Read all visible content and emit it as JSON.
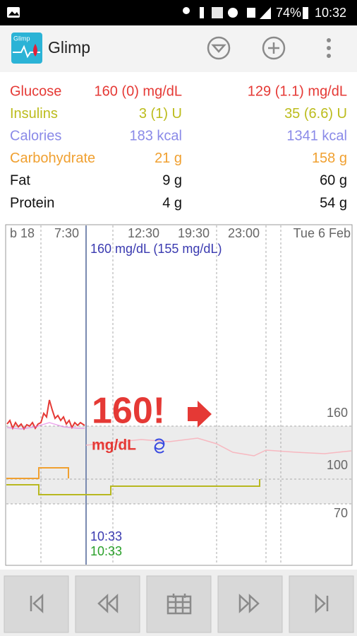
{
  "status_bar": {
    "battery": "74%",
    "time": "10:32"
  },
  "app_bar": {
    "logo_text": "Glimp",
    "title": "Glimp"
  },
  "summary": {
    "rows": [
      [
        "Glucose",
        "160 (0) mg/dL",
        "129 (1.1) mg/dL"
      ],
      [
        "Insulins",
        "3 (1) U",
        "35 (6.6) U"
      ],
      [
        "Calories",
        "183 kcal",
        "1341 kcal"
      ],
      [
        "Carbohydrate",
        "21 g",
        "158 g"
      ],
      [
        "Fat",
        "9 g",
        "60 g"
      ],
      [
        "Protein",
        "4 g",
        "54 g"
      ]
    ]
  },
  "chart": {
    "time_labels": [
      "b 18",
      "7:30",
      "12:30",
      "19:30",
      "23:00",
      "Tue 6 Feb"
    ],
    "value_labels": [
      "160",
      "100",
      "70"
    ],
    "reading_note": "160 mg/dL (155 mg/dL)",
    "current_value": "160!",
    "unit": "mg/dL",
    "times": [
      "10:33",
      "10:33"
    ]
  }
}
